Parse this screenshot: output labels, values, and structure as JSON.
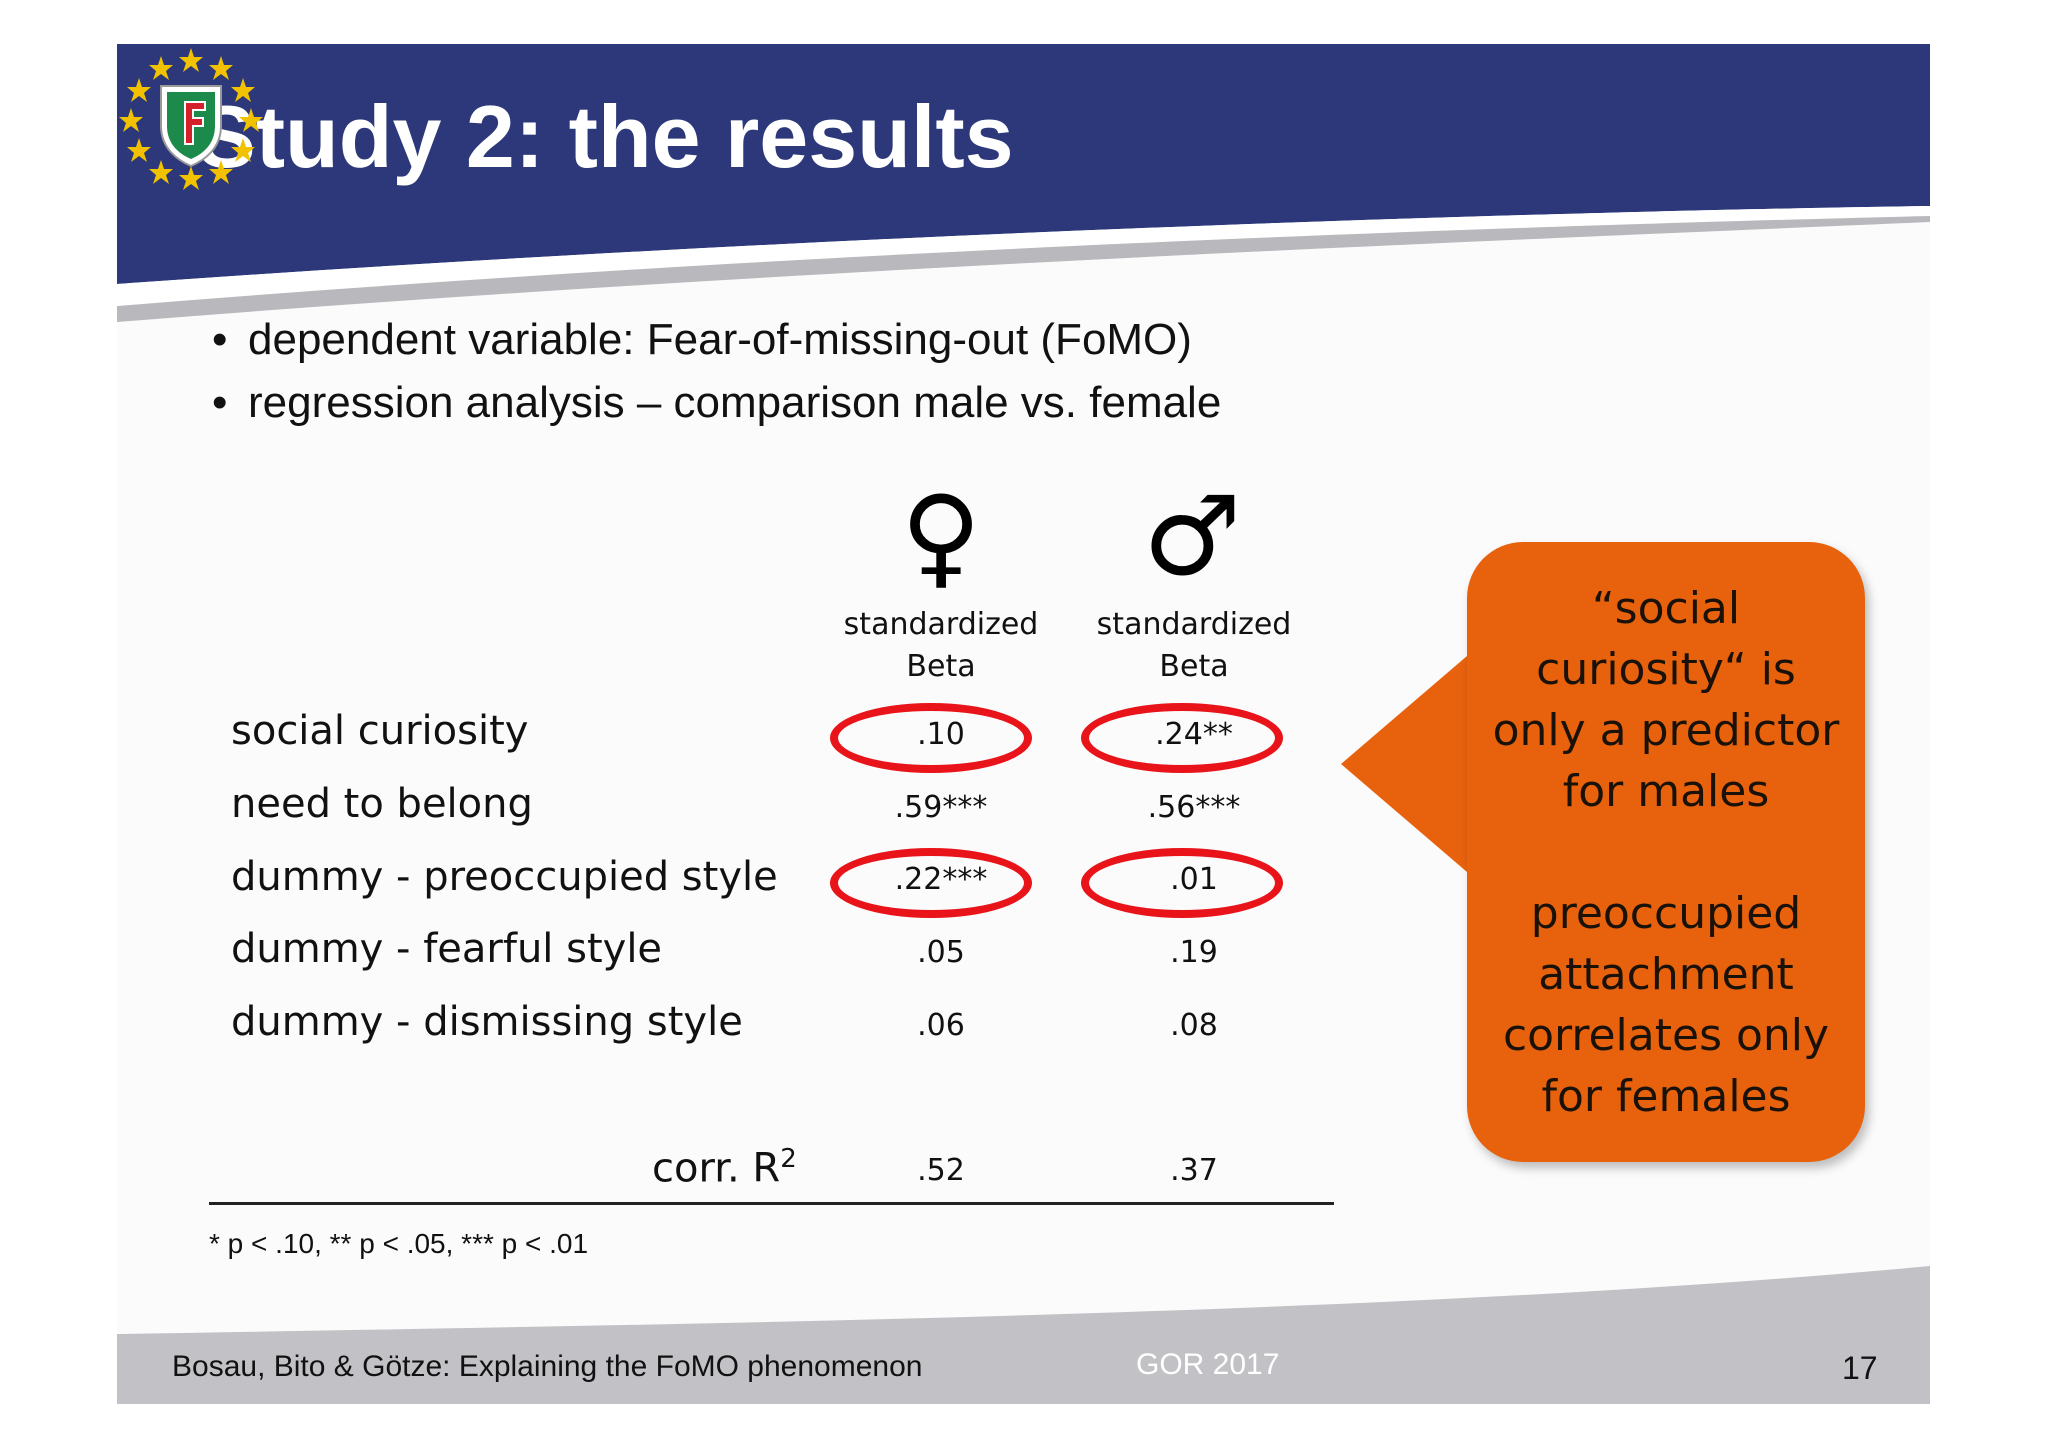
{
  "header": {
    "title": "Study 2: the results"
  },
  "bullets": [
    "dependent variable: Fear-of-missing-out (FoMO)",
    "regression analysis – comparison male vs. female"
  ],
  "bullet_glyph": "•",
  "table": {
    "columns": [
      {
        "symbol": "♀",
        "icon": "female-symbol-icon",
        "header_line1": "standardized",
        "header_line2": "Beta"
      },
      {
        "symbol": "♂",
        "icon": "male-symbol-icon",
        "header_line1": "standardized",
        "header_line2": "Beta"
      }
    ],
    "rows": [
      {
        "label": "social curiosity",
        "female": ".10",
        "male": ".24**"
      },
      {
        "label": "need to belong",
        "female": ".59***",
        "male": ".56***"
      },
      {
        "label": "dummy - preoccupied style",
        "female": ".22***",
        "male": ".01"
      },
      {
        "label": "dummy - fearful style",
        "female": ".05",
        "male": ".19"
      },
      {
        "label": "dummy - dismissing style",
        "female": ".06",
        "male": ".08"
      }
    ],
    "r2": {
      "label": "corr. R",
      "sup": "2",
      "female": ".52",
      "male": ".37"
    },
    "note": "* p < .10, ** p < .05, *** p < .01",
    "highlight_color": "#e8141a"
  },
  "callout": {
    "text": "“social\ncuriosity“ is\nonly a predictor\nfor males\n\npreoccupied\nattachment\ncorrelates only\nfor females",
    "color": "#e8620e"
  },
  "footer": {
    "left": "Bosau, Bito & Götze: Explaining the FoMO phenomenon",
    "center": "GOR 2017",
    "page": "17"
  },
  "colors": {
    "header_blue": "#2c3879",
    "footer_grey": "#c2c2c6",
    "star_yellow": "#f2c200",
    "shield_green": "#1b8a4a"
  }
}
